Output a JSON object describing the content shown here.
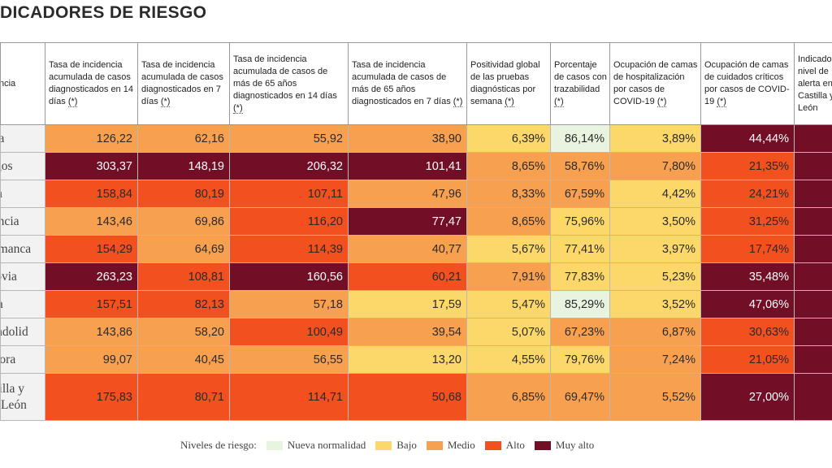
{
  "title": "DICADORES DE RIESGO",
  "header": {
    "first": "ncia",
    "cols": [
      {
        "text": "Tasa de incidencia acumulada de casos diagnosticados en 14 días",
        "ast": "(*)"
      },
      {
        "text": "Tasa de incidencia acumulada de casos diagnosticados en 7 días",
        "ast": "(*)"
      },
      {
        "text": "Tasa de incidencia acumulada de casos de más de 65 años diagnosticados en 14 días",
        "ast": "(*)"
      },
      {
        "text": "Tasa de incidencia acumulada de casos de más de 65 años diagnosticados en 7 días",
        "ast": "(*)"
      },
      {
        "text": "Positividad global de las pruebas diagnósticas por semana",
        "ast": "(*)"
      },
      {
        "text": "Porcentaje de casos con trazabilidad",
        "ast": "(*)"
      },
      {
        "text": "Ocupación de camas de hospitalización por casos de COVID-19",
        "ast": "(*)"
      },
      {
        "text": "Ocupación de camas de cuidados críticos por casos de COVID-19",
        "ast": "(*)"
      },
      {
        "text": "Indicador de nivel de alerta en Castilla y León",
        "ast": ""
      }
    ]
  },
  "rows": [
    {
      "name": "Ávila",
      "cells": [
        [
          "126,22",
          "m"
        ],
        [
          "62,16",
          "m"
        ],
        [
          "55,92",
          "m"
        ],
        [
          "38,90",
          "m"
        ],
        [
          "6,39%",
          "b"
        ],
        [
          "86,14%",
          "n"
        ],
        [
          "3,89%",
          "b"
        ],
        [
          "44,44%",
          "v"
        ],
        [
          "",
          "v"
        ]
      ]
    },
    {
      "name": "Burgos",
      "cells": [
        [
          "303,37",
          "v"
        ],
        [
          "148,19",
          "v"
        ],
        [
          "206,32",
          "v"
        ],
        [
          "101,41",
          "v"
        ],
        [
          "8,65%",
          "m"
        ],
        [
          "58,76%",
          "m"
        ],
        [
          "7,80%",
          "m"
        ],
        [
          "21,35%",
          "a"
        ],
        [
          "",
          "v"
        ]
      ]
    },
    {
      "name": "León",
      "cells": [
        [
          "158,84",
          "a"
        ],
        [
          "80,19",
          "a"
        ],
        [
          "107,11",
          "a"
        ],
        [
          "47,96",
          "m"
        ],
        [
          "8,33%",
          "m"
        ],
        [
          "67,59%",
          "m"
        ],
        [
          "4,42%",
          "b"
        ],
        [
          "24,21%",
          "a"
        ],
        [
          "",
          "v"
        ]
      ]
    },
    {
      "name": "Palencia",
      "cells": [
        [
          "143,46",
          "m"
        ],
        [
          "69,86",
          "m"
        ],
        [
          "116,20",
          "a"
        ],
        [
          "77,47",
          "v"
        ],
        [
          "8,65%",
          "m"
        ],
        [
          "75,96%",
          "b"
        ],
        [
          "3,50%",
          "b"
        ],
        [
          "31,25%",
          "a"
        ],
        [
          "",
          "v"
        ]
      ]
    },
    {
      "name": "Salamanca",
      "cells": [
        [
          "154,29",
          "a"
        ],
        [
          "64,69",
          "m"
        ],
        [
          "114,39",
          "a"
        ],
        [
          "40,77",
          "m"
        ],
        [
          "5,67%",
          "b"
        ],
        [
          "77,41%",
          "b"
        ],
        [
          "3,97%",
          "b"
        ],
        [
          "17,74%",
          "a"
        ],
        [
          "",
          "v"
        ]
      ]
    },
    {
      "name": "Segovia",
      "cells": [
        [
          "263,23",
          "v"
        ],
        [
          "108,81",
          "a"
        ],
        [
          "160,56",
          "v"
        ],
        [
          "60,21",
          "a"
        ],
        [
          "7,91%",
          "m"
        ],
        [
          "77,83%",
          "b"
        ],
        [
          "5,23%",
          "b"
        ],
        [
          "35,48%",
          "v"
        ],
        [
          "",
          "v"
        ]
      ]
    },
    {
      "name": "Soria",
      "cells": [
        [
          "157,51",
          "a"
        ],
        [
          "82,13",
          "a"
        ],
        [
          "57,18",
          "m"
        ],
        [
          "17,59",
          "b"
        ],
        [
          "5,47%",
          "b"
        ],
        [
          "85,29%",
          "n"
        ],
        [
          "3,52%",
          "b"
        ],
        [
          "47,06%",
          "v"
        ],
        [
          "",
          "v"
        ]
      ]
    },
    {
      "name": "Valladolid",
      "cells": [
        [
          "143,86",
          "m"
        ],
        [
          "58,20",
          "m"
        ],
        [
          "100,49",
          "a"
        ],
        [
          "39,54",
          "m"
        ],
        [
          "5,07%",
          "b"
        ],
        [
          "67,23%",
          "m"
        ],
        [
          "6,87%",
          "m"
        ],
        [
          "30,63%",
          "a"
        ],
        [
          "",
          "v"
        ]
      ]
    },
    {
      "name": "Zamora",
      "cells": [
        [
          "99,07",
          "m"
        ],
        [
          "40,45",
          "m"
        ],
        [
          "56,55",
          "m"
        ],
        [
          "13,20",
          "b"
        ],
        [
          "4,55%",
          "b"
        ],
        [
          "79,76%",
          "b"
        ],
        [
          "7,24%",
          "m"
        ],
        [
          "21,05%",
          "a"
        ],
        [
          "",
          "v"
        ]
      ]
    },
    {
      "name": "Castilla y León",
      "cells": [
        [
          "175,83",
          "a"
        ],
        [
          "80,71",
          "a"
        ],
        [
          "114,71",
          "a"
        ],
        [
          "50,68",
          "a"
        ],
        [
          "6,85%",
          "m"
        ],
        [
          "69,47%",
          "m"
        ],
        [
          "5,52%",
          "m"
        ],
        [
          "27,00%",
          "v"
        ],
        [
          "",
          "v"
        ]
      ]
    }
  ],
  "legend": {
    "label": "Niveles de riesgo:",
    "items": [
      {
        "label": "Nueva normalidad",
        "color": "#e8f4e0"
      },
      {
        "label": "Bajo",
        "color": "#fcd86a"
      },
      {
        "label": "Medio",
        "color": "#f7a150"
      },
      {
        "label": "Alto",
        "color": "#f2501f"
      },
      {
        "label": "Muy alto",
        "color": "#720f26"
      }
    ]
  }
}
